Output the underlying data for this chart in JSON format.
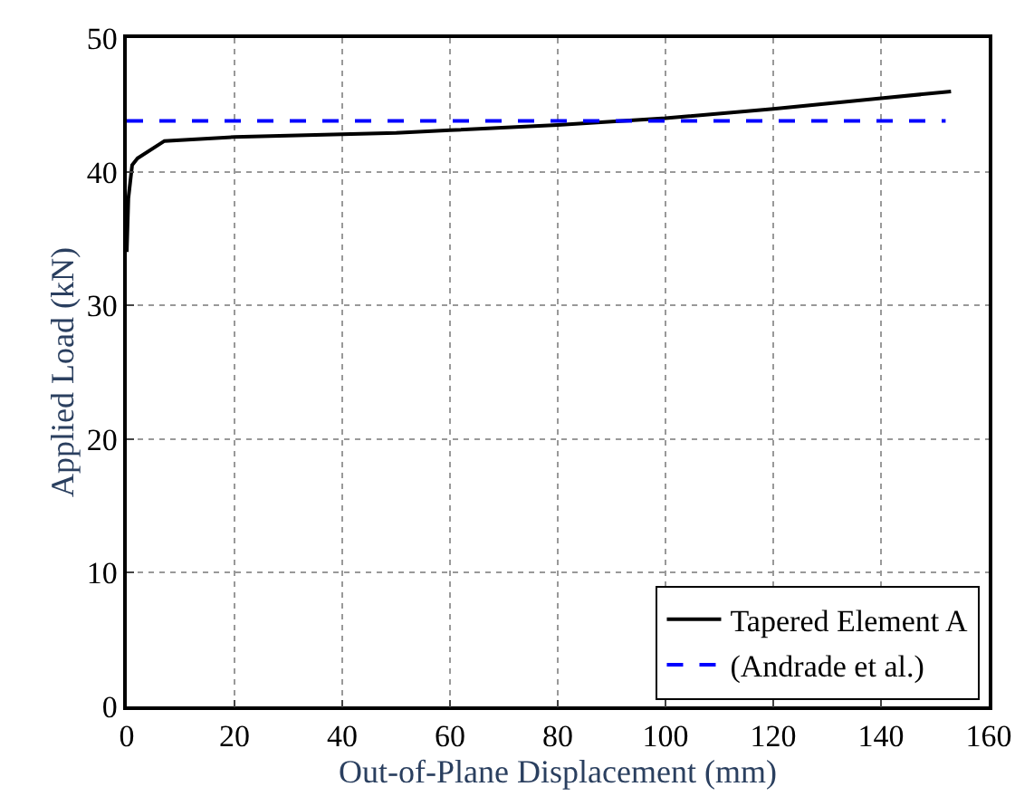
{
  "chart_data": {
    "type": "line",
    "xlabel": "Out-of-Plane Displacement (mm)",
    "ylabel": "Applied Load (kN)",
    "xlim": [
      0,
      160
    ],
    "xticks": [
      0,
      20,
      40,
      60,
      80,
      100,
      120,
      140,
      160
    ],
    "ylim": [
      0,
      50
    ],
    "yticks": [
      0,
      10,
      20,
      30,
      40,
      50
    ],
    "grid": true,
    "legend": "bottom right",
    "series": [
      {
        "name": "Tapered Element A",
        "color": "#000000",
        "line_style": "solid",
        "x": [
          0,
          0.3,
          1,
          2,
          7,
          20,
          30,
          40,
          50,
          60,
          80,
          100,
          120,
          140,
          153
        ],
        "values": [
          34,
          38,
          40.5,
          41,
          42.3,
          42.6,
          42.7,
          42.8,
          42.9,
          43.1,
          43.5,
          44,
          44.7,
          45.5,
          46
        ]
      },
      {
        "name": "(Andrade et al.)",
        "color": "#0000ff",
        "line_style": "dashed",
        "x": [
          0,
          152
        ],
        "values": [
          43.8,
          43.8
        ]
      }
    ]
  }
}
